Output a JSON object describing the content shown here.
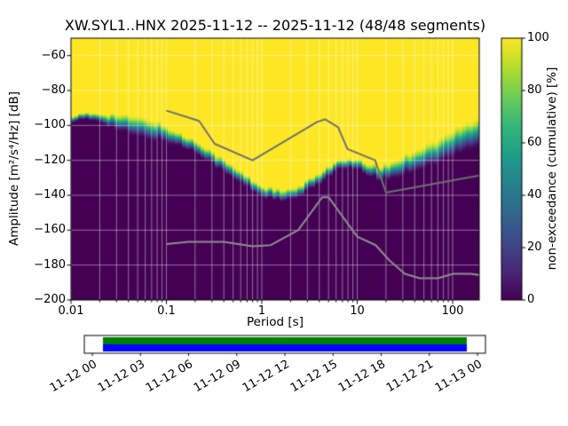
{
  "chart_data": {
    "type": "heatmap",
    "title": "XW.SYL1..HNX   2025-11-12 -- 2025-11-12  (48/48 segments)",
    "xlabel": "Period [s]",
    "ylabel": "Amplitude [m²/s⁴/Hz] [dB]",
    "colorbar_label": "non-exceedance (cumulative) [%]",
    "x_scale": "log",
    "xlim": [
      0.01,
      190
    ],
    "ylim": [
      -200,
      -50
    ],
    "grid": true,
    "x_ticks": [
      {
        "v": 0.01,
        "label": "0.01"
      },
      {
        "v": 0.1,
        "label": "0.1"
      },
      {
        "v": 1,
        "label": "1"
      },
      {
        "v": 10,
        "label": "10"
      },
      {
        "v": 100,
        "label": "100"
      }
    ],
    "y_ticks": [
      {
        "v": -200,
        "label": "−200"
      },
      {
        "v": -180,
        "label": "−180"
      },
      {
        "v": -160,
        "label": "−160"
      },
      {
        "v": -140,
        "label": "−140"
      },
      {
        "v": -120,
        "label": "−120"
      },
      {
        "v": -100,
        "label": "−100"
      },
      {
        "v": -80,
        "label": "−80"
      },
      {
        "v": -60,
        "label": "−60"
      }
    ],
    "colorbar_ticks": [
      {
        "v": 0,
        "label": "0"
      },
      {
        "v": 20,
        "label": "20"
      },
      {
        "v": 40,
        "label": "40"
      },
      {
        "v": 60,
        "label": "60"
      },
      {
        "v": 80,
        "label": "80"
      },
      {
        "v": 100,
        "label": "100"
      }
    ],
    "colormap": {
      "name": "viridis",
      "stops": [
        [
          0,
          "#440154"
        ],
        [
          0.111,
          "#482878"
        ],
        [
          0.222,
          "#3e4989"
        ],
        [
          0.333,
          "#31688e"
        ],
        [
          0.444,
          "#26828e"
        ],
        [
          0.556,
          "#1f9e89"
        ],
        [
          0.667,
          "#35b779"
        ],
        [
          0.778,
          "#6dcd59"
        ],
        [
          0.889,
          "#b4de2c"
        ],
        [
          1,
          "#fde725"
        ]
      ]
    },
    "distribution": {
      "description": "50% non-exceedance level (dB) and half-spread of transition per period",
      "periods": [
        0.012,
        0.02,
        0.03,
        0.05,
        0.08,
        0.1,
        0.15,
        0.22,
        0.35,
        0.5,
        0.7,
        1.0,
        1.6,
        2.2,
        3.2,
        4.5,
        6.0,
        8.0,
        11.0,
        14.0,
        18.0,
        25.0,
        40.0,
        70.0,
        110.0,
        180.0
      ],
      "median_db": [
        -95.5,
        -95,
        -98,
        -101,
        -103,
        -105,
        -109,
        -113,
        -121,
        -127,
        -132,
        -137.5,
        -140.5,
        -139.5,
        -134,
        -128,
        -123.5,
        -122,
        -123.5,
        -126,
        -127.5,
        -125,
        -120,
        -115,
        -109,
        -104
      ],
      "spread_db": [
        2,
        2.5,
        5,
        6.5,
        6,
        5,
        4,
        4,
        4,
        4,
        3.5,
        3.5,
        3.5,
        3.5,
        3.5,
        3.5,
        3,
        3,
        3.5,
        4,
        4.5,
        5.5,
        6.5,
        7.5,
        8.5,
        9
      ]
    },
    "noise_models": {
      "high_noise_model": {
        "color": "#707070",
        "points": [
          [
            0.1,
            -91.5
          ],
          [
            0.22,
            -97.4
          ],
          [
            0.32,
            -110.5
          ],
          [
            0.8,
            -120
          ],
          [
            3.8,
            -98
          ],
          [
            4.6,
            -96.5
          ],
          [
            6.3,
            -101
          ],
          [
            7.9,
            -113.5
          ],
          [
            15.4,
            -120
          ],
          [
            20,
            -138.5
          ],
          [
            354.8,
            -126
          ]
        ]
      },
      "low_noise_model": {
        "color": "#8f8f8f",
        "points": [
          [
            0.1,
            -168
          ],
          [
            0.17,
            -166.7
          ],
          [
            0.4,
            -166.7
          ],
          [
            0.8,
            -169.2
          ],
          [
            1.24,
            -168.6
          ],
          [
            2.4,
            -160
          ],
          [
            4.3,
            -141.1
          ],
          [
            5,
            -141.1
          ],
          [
            10,
            -163.7
          ],
          [
            15.6,
            -168.6
          ],
          [
            21.9,
            -177.5
          ],
          [
            31.6,
            -185
          ],
          [
            45,
            -187.5
          ],
          [
            70,
            -187.5
          ],
          [
            101,
            -185
          ],
          [
            154,
            -185
          ],
          [
            328,
            -187.5
          ]
        ]
      }
    }
  },
  "timeline": {
    "tick_labels": [
      "11-12 00",
      "11-12 03",
      "11-12 06",
      "11-12 09",
      "11-12 12",
      "11-12 15",
      "11-12 18",
      "11-12 21",
      "11-13 00"
    ],
    "bar_border_color": "#000000",
    "bar_background_color": "#ffffff",
    "coverage_top_color": "#008000",
    "coverage_bottom_color": "#0000ff",
    "coverage_start_frac": 0.0465,
    "coverage_end_frac": 0.9535
  }
}
